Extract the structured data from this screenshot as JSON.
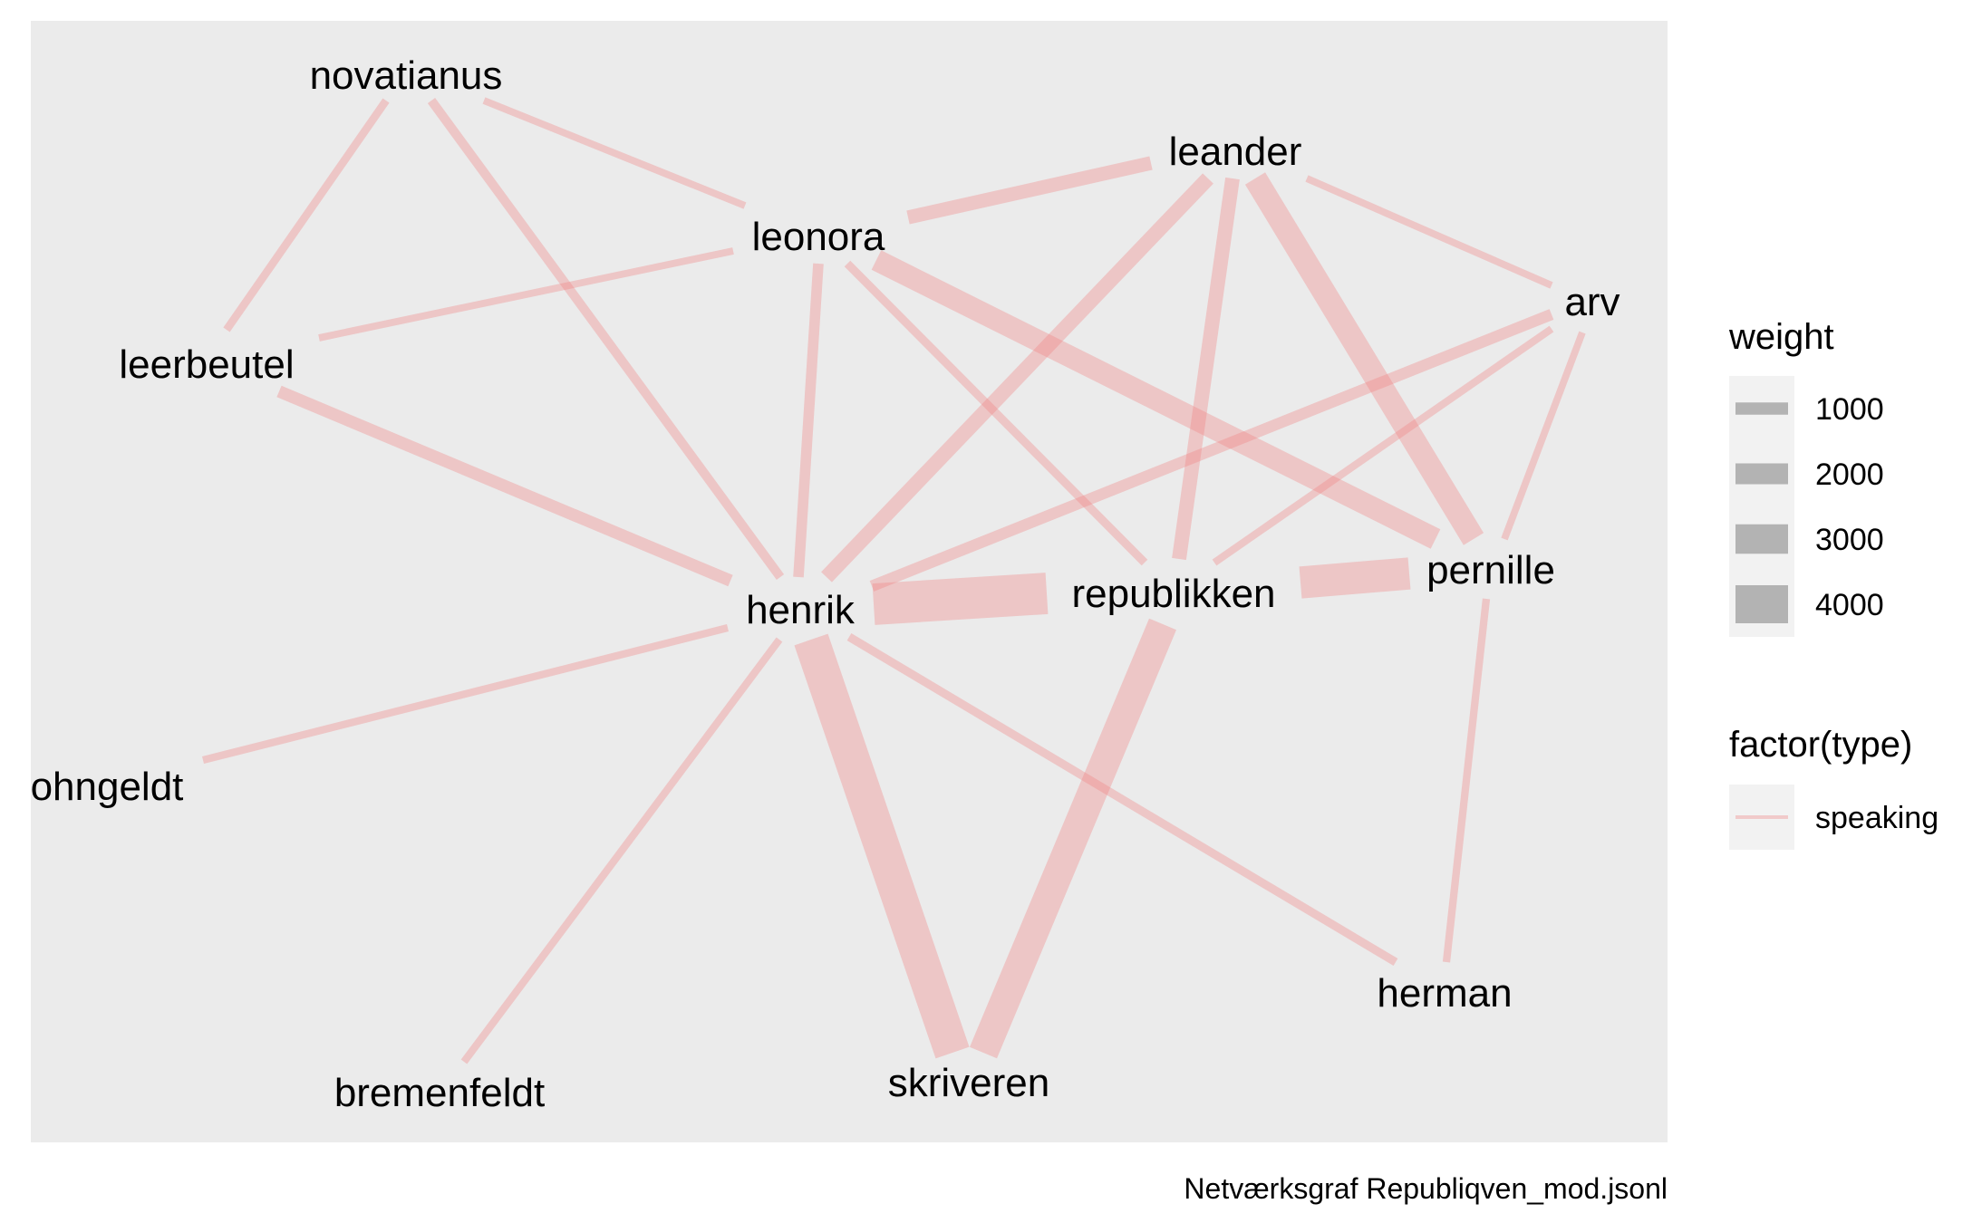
{
  "caption": "Netværksgraf Republiqven_mod.jsonl",
  "colors": {
    "panel": "#ebebeb",
    "edge": "#f08080",
    "legend_key_bg": "#f2f2f2",
    "legend_key_fill": "#b3b3b3"
  },
  "nodes": [
    {
      "id": "novatianus",
      "label": "novatianus"
    },
    {
      "id": "leander",
      "label": "leander"
    },
    {
      "id": "leonora",
      "label": "leonora"
    },
    {
      "id": "arv",
      "label": "arv"
    },
    {
      "id": "leerbeutel",
      "label": "leerbeutel"
    },
    {
      "id": "pernille",
      "label": "pernille"
    },
    {
      "id": "republikken",
      "label": "republikken"
    },
    {
      "id": "henrik",
      "label": "henrik"
    },
    {
      "id": "ohngeldt",
      "label": "ohngeldt"
    },
    {
      "id": "herman",
      "label": "herman"
    },
    {
      "id": "skriveren",
      "label": "skriveren"
    },
    {
      "id": "bremenfeldt",
      "label": "bremenfeldt"
    }
  ],
  "edges": [
    {
      "from": "novatianus",
      "to": "leerbeutel",
      "type": "speaking",
      "weight": 500
    },
    {
      "from": "novatianus",
      "to": "henrik",
      "type": "speaking",
      "weight": 650
    },
    {
      "from": "novatianus",
      "to": "leonora",
      "type": "speaking",
      "weight": 400
    },
    {
      "from": "leonora",
      "to": "leander",
      "type": "speaking",
      "weight": 1200
    },
    {
      "from": "leonora",
      "to": "leerbeutel",
      "type": "speaking",
      "weight": 400
    },
    {
      "from": "leonora",
      "to": "henrik",
      "type": "speaking",
      "weight": 800
    },
    {
      "from": "leonora",
      "to": "republikken",
      "type": "speaking",
      "weight": 550
    },
    {
      "from": "leonora",
      "to": "pernille",
      "type": "speaking",
      "weight": 2100
    },
    {
      "from": "leander",
      "to": "henrik",
      "type": "speaking",
      "weight": 1300
    },
    {
      "from": "leander",
      "to": "republikken",
      "type": "speaking",
      "weight": 1250
    },
    {
      "from": "leander",
      "to": "pernille",
      "type": "speaking",
      "weight": 2300
    },
    {
      "from": "leander",
      "to": "arv",
      "type": "speaking",
      "weight": 400
    },
    {
      "from": "arv",
      "to": "henrik",
      "type": "speaking",
      "weight": 900
    },
    {
      "from": "arv",
      "to": "republikken",
      "type": "speaking",
      "weight": 450
    },
    {
      "from": "arv",
      "to": "pernille",
      "type": "speaking",
      "weight": 400
    },
    {
      "from": "leerbeutel",
      "to": "henrik",
      "type": "speaking",
      "weight": 1000
    },
    {
      "from": "henrik",
      "to": "republikken",
      "type": "speaking",
      "weight": 4400
    },
    {
      "from": "republikken",
      "to": "pernille",
      "type": "speaking",
      "weight": 3300
    },
    {
      "from": "henrik",
      "to": "ohngeldt",
      "type": "speaking",
      "weight": 450
    },
    {
      "from": "henrik",
      "to": "bremenfeldt",
      "type": "speaking",
      "weight": 450
    },
    {
      "from": "henrik",
      "to": "skriveren",
      "type": "speaking",
      "weight": 3700
    },
    {
      "from": "henrik",
      "to": "herman",
      "type": "speaking",
      "weight": 550
    },
    {
      "from": "republikken",
      "to": "skriveren",
      "type": "speaking",
      "weight": 3000
    },
    {
      "from": "pernille",
      "to": "herman",
      "type": "speaking",
      "weight": 450
    }
  ],
  "legend": {
    "weight": {
      "title": "weight",
      "items": [
        {
          "label": "1000",
          "value": 1000
        },
        {
          "label": "2000",
          "value": 2000
        },
        {
          "label": "3000",
          "value": 3000
        },
        {
          "label": "4000",
          "value": 4000
        }
      ]
    },
    "type": {
      "title": "factor(type)",
      "items": [
        {
          "label": "speaking"
        }
      ]
    }
  }
}
